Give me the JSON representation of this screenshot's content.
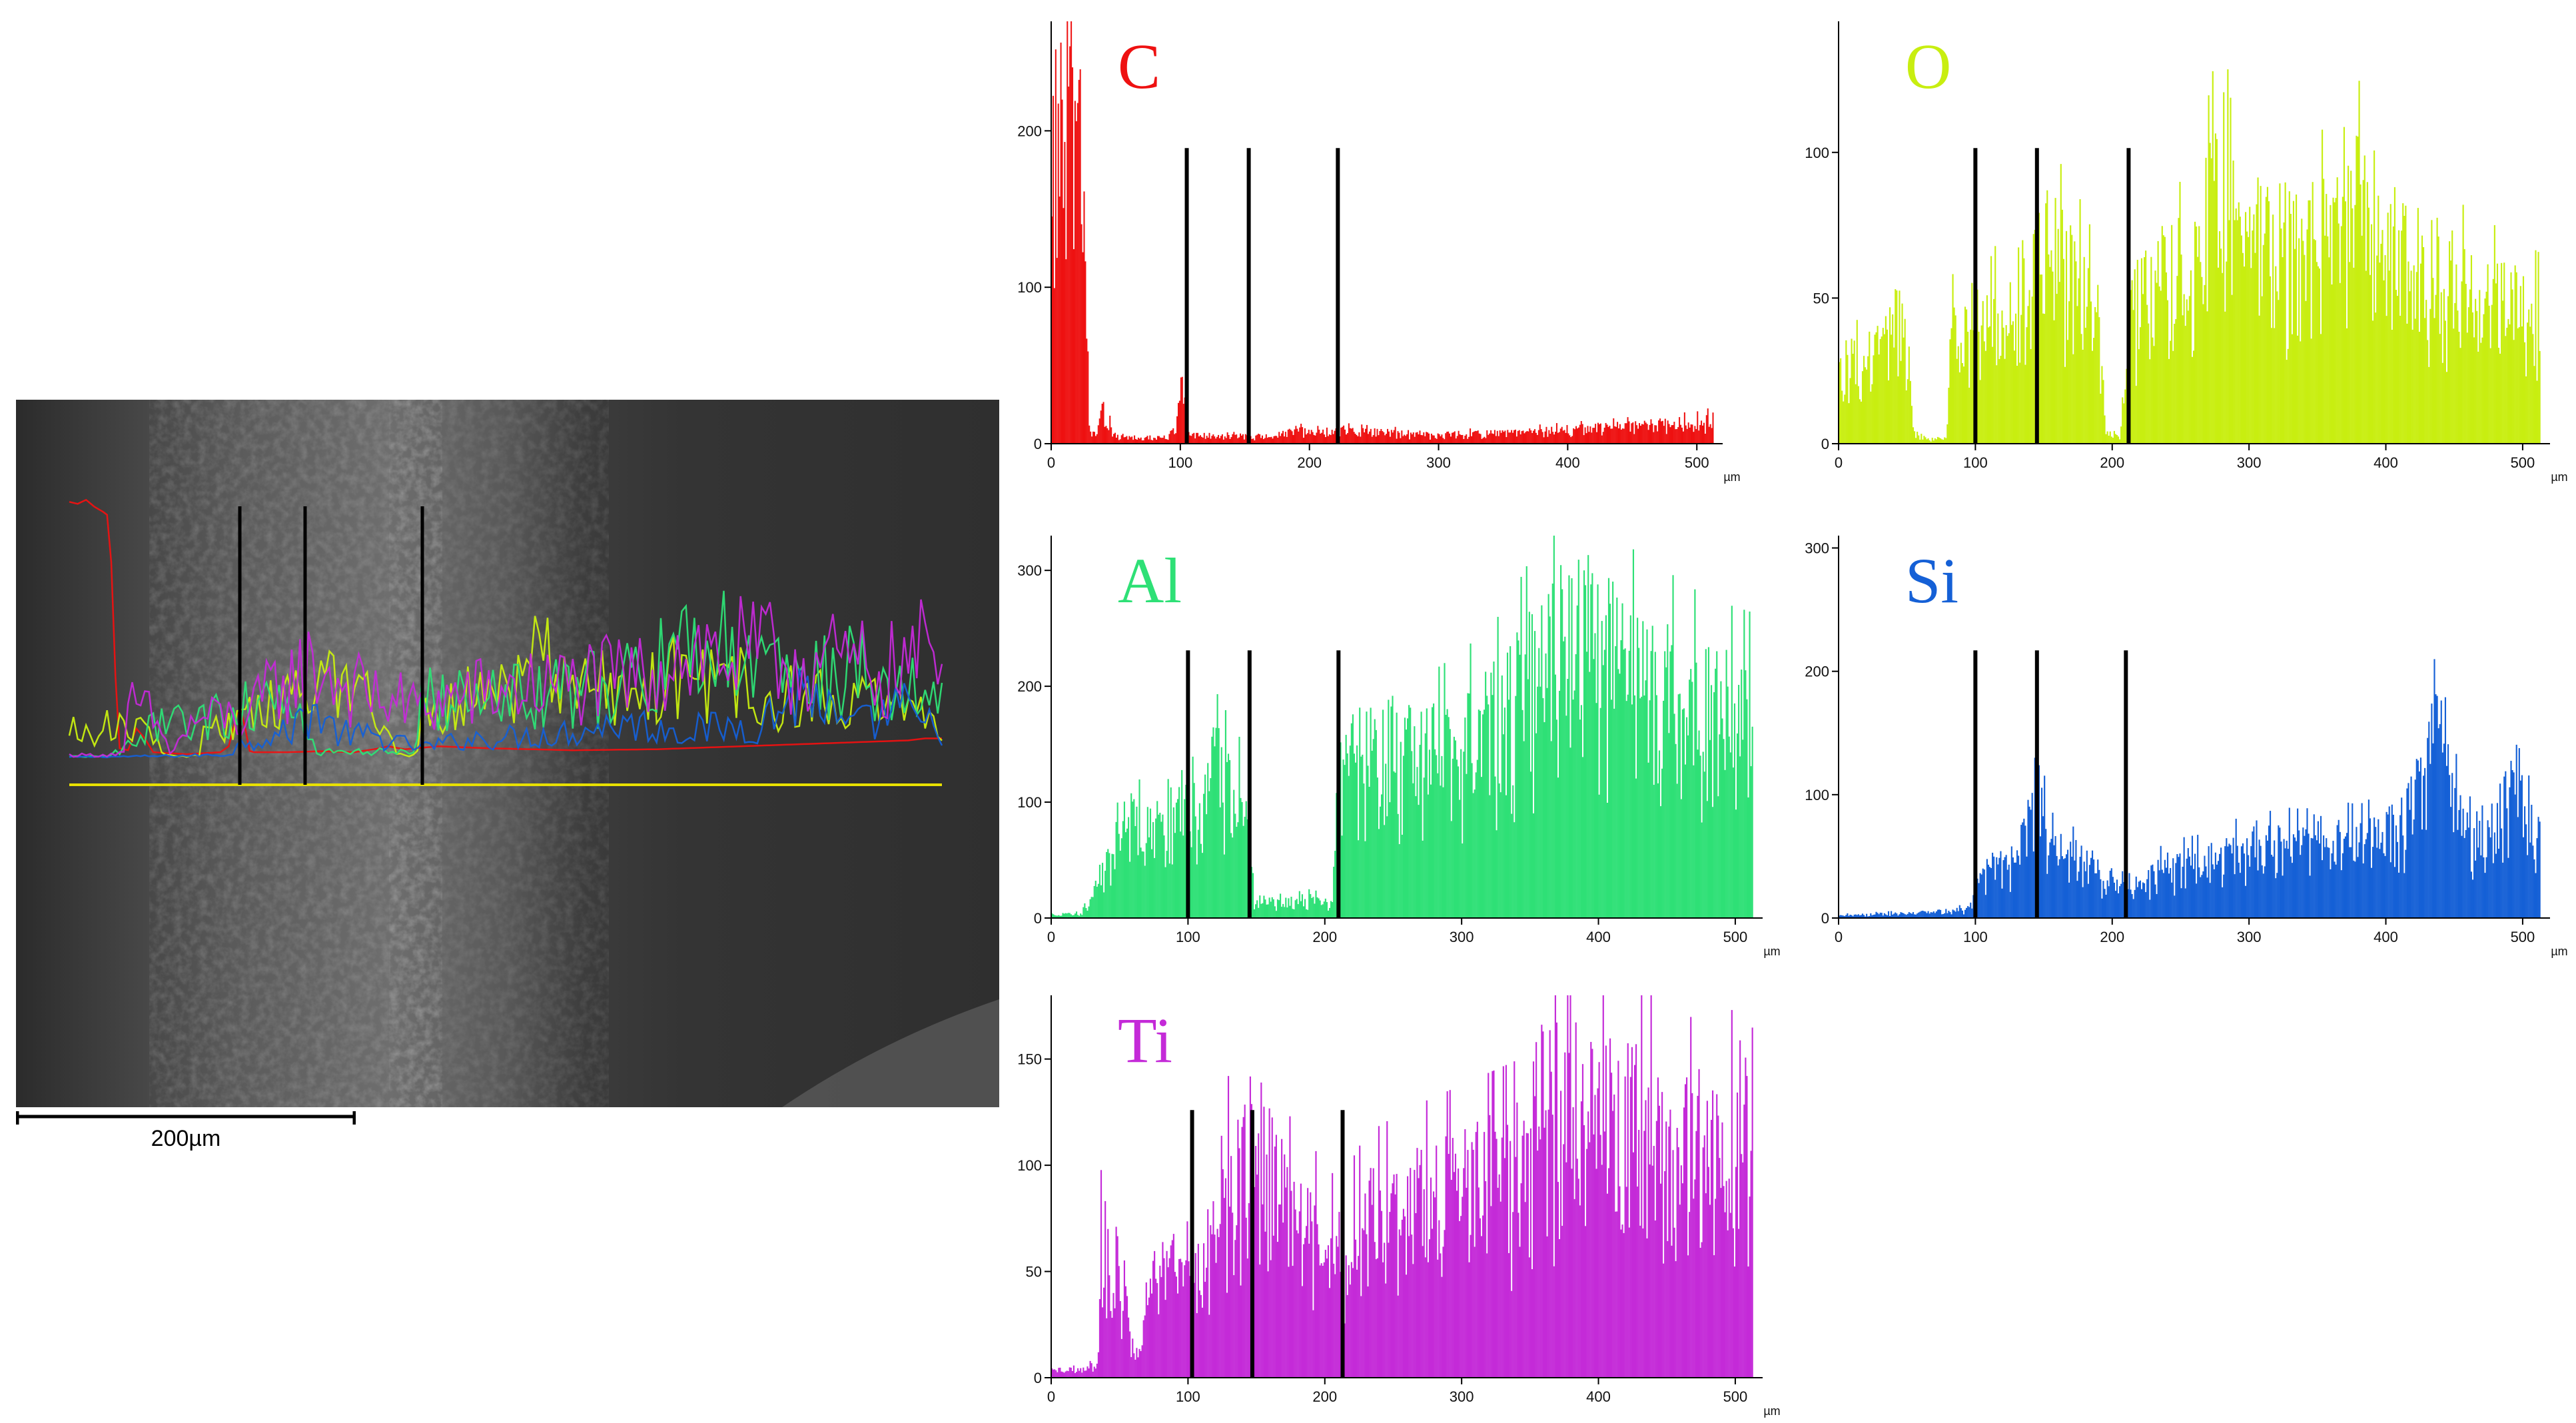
{
  "micrograph": {
    "scale_bar_label": "200µm"
  },
  "chart_data": [
    {
      "type": "bar",
      "element": "C",
      "color": "#ee1111",
      "xlim": [
        0,
        520
      ],
      "ylim": [
        0,
        270
      ],
      "x_ticks": [
        0,
        100,
        200,
        300,
        400,
        500
      ],
      "y_ticks": [
        0,
        100,
        200
      ],
      "x_unit": "µm",
      "markers_um": [
        105,
        153,
        222
      ],
      "profile": [
        [
          0,
          260
        ],
        [
          5,
          258
        ],
        [
          10,
          262
        ],
        [
          15,
          255
        ],
        [
          20,
          250
        ],
        [
          24,
          245
        ],
        [
          28,
          60
        ],
        [
          30,
          10
        ],
        [
          35,
          8
        ],
        [
          40,
          30
        ],
        [
          45,
          20
        ],
        [
          50,
          6
        ],
        [
          60,
          5
        ],
        [
          70,
          4
        ],
        [
          80,
          5
        ],
        [
          90,
          6
        ],
        [
          95,
          12
        ],
        [
          100,
          45
        ],
        [
          104,
          50
        ],
        [
          106,
          8
        ],
        [
          110,
          6
        ],
        [
          130,
          6
        ],
        [
          150,
          7
        ],
        [
          170,
          6
        ],
        [
          185,
          10
        ],
        [
          190,
          12
        ],
        [
          200,
          9
        ],
        [
          220,
          12
        ],
        [
          250,
          10
        ],
        [
          300,
          8
        ],
        [
          350,
          9
        ],
        [
          400,
          12
        ],
        [
          450,
          15
        ],
        [
          500,
          18
        ],
        [
          510,
          20
        ]
      ]
    },
    {
      "type": "bar",
      "element": "O",
      "color": "#c8ee10",
      "xlim": [
        0,
        520
      ],
      "ylim": [
        0,
        145
      ],
      "x_ticks": [
        0,
        100,
        200,
        300,
        400,
        500
      ],
      "y_ticks": [
        0,
        50,
        100
      ],
      "x_unit": "µm",
      "markers_um": [
        100,
        145,
        212
      ],
      "profile": [
        [
          0,
          35
        ],
        [
          20,
          38
        ],
        [
          35,
          45
        ],
        [
          45,
          60
        ],
        [
          50,
          35
        ],
        [
          55,
          5
        ],
        [
          65,
          2
        ],
        [
          78,
          3
        ],
        [
          82,
          50
        ],
        [
          90,
          55
        ],
        [
          100,
          45
        ],
        [
          120,
          65
        ],
        [
          140,
          75
        ],
        [
          150,
          90
        ],
        [
          160,
          85
        ],
        [
          180,
          70
        ],
        [
          190,
          55
        ],
        [
          195,
          5
        ],
        [
          205,
          3
        ],
        [
          212,
          60
        ],
        [
          230,
          75
        ],
        [
          260,
          80
        ],
        [
          285,
          140
        ],
        [
          290,
          90
        ],
        [
          320,
          95
        ],
        [
          350,
          90
        ],
        [
          370,
          115
        ],
        [
          400,
          95
        ],
        [
          430,
          80
        ],
        [
          460,
          70
        ],
        [
          500,
          60
        ],
        [
          520,
          55
        ]
      ]
    },
    {
      "type": "bar",
      "element": "Al",
      "color": "#2ee076",
      "xlim": [
        0,
        520
      ],
      "ylim": [
        0,
        330
      ],
      "x_ticks": [
        0,
        100,
        200,
        300,
        400,
        500
      ],
      "y_ticks": [
        0,
        100,
        200,
        300
      ],
      "x_unit": "µm",
      "markers_um": [
        100,
        145,
        210
      ],
      "profile": [
        [
          0,
          4
        ],
        [
          20,
          5
        ],
        [
          30,
          20
        ],
        [
          40,
          60
        ],
        [
          55,
          110
        ],
        [
          70,
          100
        ],
        [
          85,
          120
        ],
        [
          100,
          140
        ],
        [
          120,
          170
        ],
        [
          140,
          130
        ],
        [
          148,
          20
        ],
        [
          170,
          18
        ],
        [
          190,
          22
        ],
        [
          205,
          15
        ],
        [
          210,
          170
        ],
        [
          240,
          200
        ],
        [
          270,
          180
        ],
        [
          300,
          200
        ],
        [
          330,
          230
        ],
        [
          360,
          290
        ],
        [
          390,
          330
        ],
        [
          420,
          280
        ],
        [
          450,
          260
        ],
        [
          480,
          240
        ],
        [
          510,
          230
        ],
        [
          520,
          220
        ]
      ]
    },
    {
      "type": "bar",
      "element": "Si",
      "color": "#1560d6",
      "xlim": [
        0,
        520
      ],
      "ylim": [
        0,
        310
      ],
      "x_ticks": [
        0,
        100,
        200,
        300,
        400,
        500
      ],
      "y_ticks": [
        0,
        100,
        200,
        300
      ],
      "x_unit": "µm",
      "markers_um": [
        100,
        145,
        210
      ],
      "profile": [
        [
          0,
          3
        ],
        [
          20,
          4
        ],
        [
          40,
          5
        ],
        [
          60,
          6
        ],
        [
          80,
          8
        ],
        [
          95,
          10
        ],
        [
          105,
          50
        ],
        [
          130,
          70
        ],
        [
          145,
          140
        ],
        [
          160,
          70
        ],
        [
          180,
          60
        ],
        [
          200,
          40
        ],
        [
          210,
          30
        ],
        [
          240,
          55
        ],
        [
          270,
          60
        ],
        [
          300,
          75
        ],
        [
          330,
          100
        ],
        [
          350,
          85
        ],
        [
          380,
          80
        ],
        [
          410,
          95
        ],
        [
          440,
          200
        ],
        [
          460,
          85
        ],
        [
          480,
          100
        ],
        [
          495,
          150
        ],
        [
          505,
          95
        ],
        [
          520,
          85
        ]
      ]
    },
    {
      "type": "bar",
      "element": "Ti",
      "color": "#c42ad8",
      "xlim": [
        0,
        520
      ],
      "ylim": [
        0,
        180
      ],
      "x_ticks": [
        0,
        100,
        200,
        300,
        400,
        500
      ],
      "y_ticks": [
        0,
        50,
        100,
        150
      ],
      "x_unit": "µm",
      "markers_um": [
        103,
        147,
        213
      ],
      "profile": [
        [
          0,
          5
        ],
        [
          20,
          5
        ],
        [
          33,
          8
        ],
        [
          36,
          85
        ],
        [
          45,
          80
        ],
        [
          55,
          40
        ],
        [
          60,
          10
        ],
        [
          65,
          25
        ],
        [
          75,
          60
        ],
        [
          90,
          70
        ],
        [
          105,
          60
        ],
        [
          120,
          110
        ],
        [
          140,
          140
        ],
        [
          150,
          145
        ],
        [
          170,
          110
        ],
        [
          190,
          95
        ],
        [
          210,
          80
        ],
        [
          230,
          100
        ],
        [
          260,
          110
        ],
        [
          300,
          120
        ],
        [
          340,
          130
        ],
        [
          360,
          175
        ],
        [
          400,
          165
        ],
        [
          430,
          160
        ],
        [
          460,
          150
        ],
        [
          490,
          140
        ],
        [
          510,
          170
        ],
        [
          520,
          150
        ]
      ]
    }
  ]
}
